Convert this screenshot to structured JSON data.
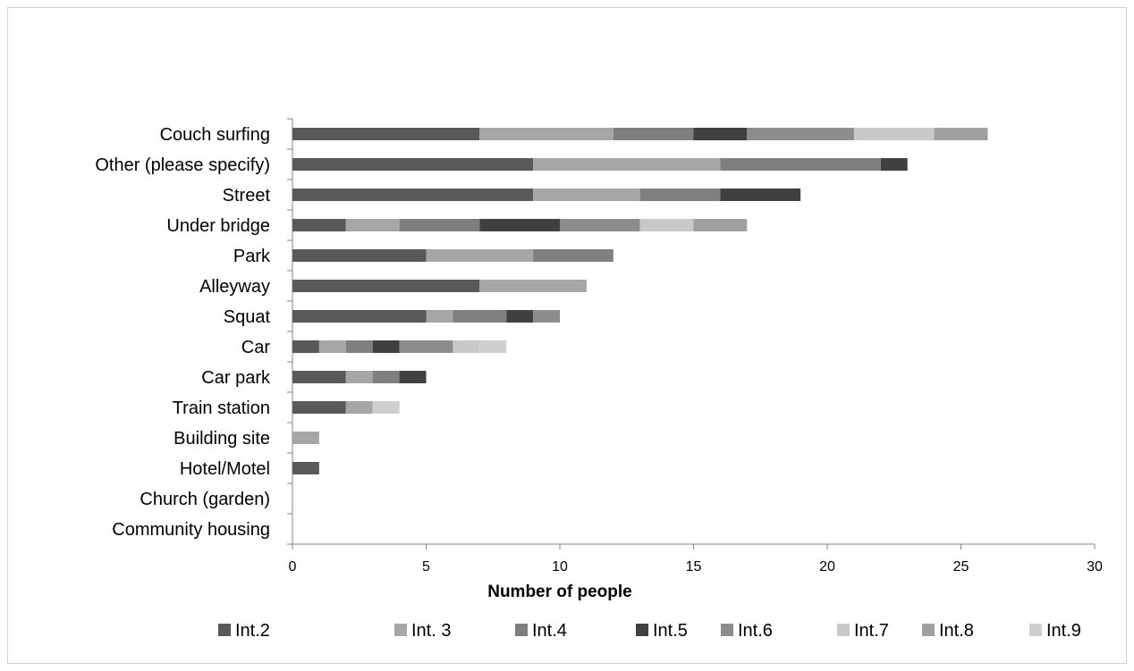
{
  "chart_data": {
    "type": "bar",
    "orientation": "horizontal",
    "stacked": true,
    "categories": [
      "Couch surfing",
      "Other (please specify)",
      "Street",
      "Under bridge",
      "Park",
      "Alleyway",
      "Squat",
      "Car",
      "Car park",
      "Train station",
      "Building site",
      "Hotel/Motel",
      "Church (garden)",
      "Community housing"
    ],
    "series": [
      {
        "name": "Int.2",
        "color": "#595959",
        "values": [
          7,
          9,
          9,
          2,
          5,
          7,
          5,
          1,
          2,
          2,
          0,
          1,
          0,
          0
        ]
      },
      {
        "name": "Int. 3",
        "color": "#a6a6a6",
        "values": [
          5,
          7,
          4,
          2,
          4,
          4,
          1,
          1,
          1,
          1,
          1,
          0,
          0,
          0
        ]
      },
      {
        "name": "Int.4",
        "color": "#7f7f7f",
        "values": [
          3,
          6,
          3,
          3,
          3,
          0,
          2,
          1,
          1,
          0,
          0,
          0,
          0,
          0
        ]
      },
      {
        "name": "Int.5",
        "color": "#404040",
        "values": [
          2,
          1,
          3,
          3,
          0,
          0,
          1,
          1,
          1,
          0,
          0,
          0,
          0,
          0
        ]
      },
      {
        "name": "Int.6",
        "color": "#8c8c8c",
        "values": [
          4,
          0,
          0,
          3,
          0,
          0,
          1,
          2,
          0,
          0,
          0,
          0,
          0,
          0
        ]
      },
      {
        "name": "Int.7",
        "color": "#c8c8c8",
        "values": [
          3,
          0,
          0,
          2,
          0,
          0,
          0,
          1,
          0,
          0,
          0,
          0,
          0,
          0
        ]
      },
      {
        "name": "Int.8",
        "color": "#a0a0a0",
        "values": [
          2,
          0,
          0,
          2,
          0,
          0,
          0,
          0,
          0,
          0,
          0,
          0,
          0,
          0
        ]
      },
      {
        "name": "Int.9",
        "color": "#cfcfcf",
        "values": [
          0,
          0,
          0,
          0,
          0,
          0,
          0,
          1,
          0,
          1,
          0,
          0,
          0,
          0
        ]
      }
    ],
    "xlabel": "Number of people",
    "ylabel": "",
    "xlim": [
      0,
      30
    ],
    "xticks": [
      0,
      5,
      10,
      15,
      20,
      25,
      30
    ],
    "grid": false,
    "legend_position": "bottom"
  }
}
